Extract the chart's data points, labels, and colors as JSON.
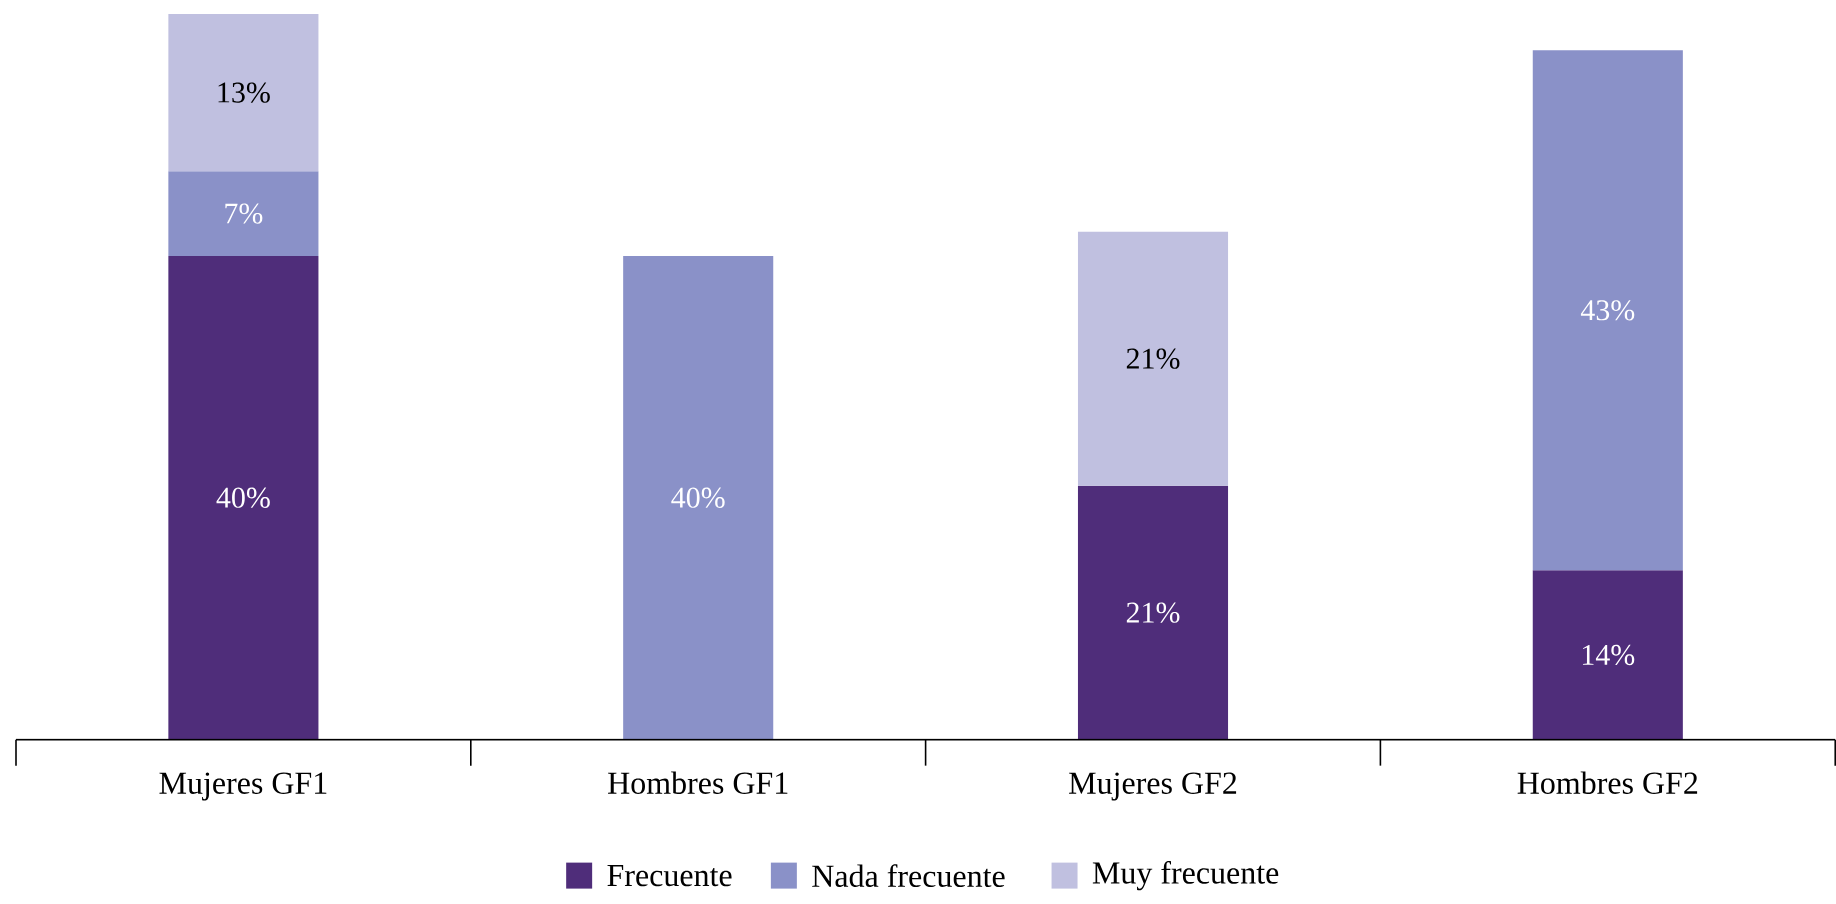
{
  "chart_data": {
    "type": "bar",
    "stacked": true,
    "categories": [
      "Mujeres GF1",
      "Hombres GF1",
      "Mujeres GF2",
      "Hombres GF2"
    ],
    "series": [
      {
        "name": "Frecuente",
        "color": "#4f2d7a",
        "values": [
          40,
          null,
          21,
          14
        ],
        "value_labels": [
          "40%",
          null,
          "21%",
          "14%"
        ]
      },
      {
        "name": "Nada frecuente",
        "color": "#8a91c8",
        "values": [
          7,
          40,
          null,
          43
        ],
        "value_labels": [
          "7%",
          "40%",
          null,
          "43%"
        ]
      },
      {
        "name": "Muy frecuente",
        "color": "#c0c0e0",
        "values": [
          13,
          null,
          21,
          null
        ],
        "value_labels": [
          "13%",
          null,
          "21%",
          null
        ]
      }
    ],
    "legend": "bottom"
  }
}
